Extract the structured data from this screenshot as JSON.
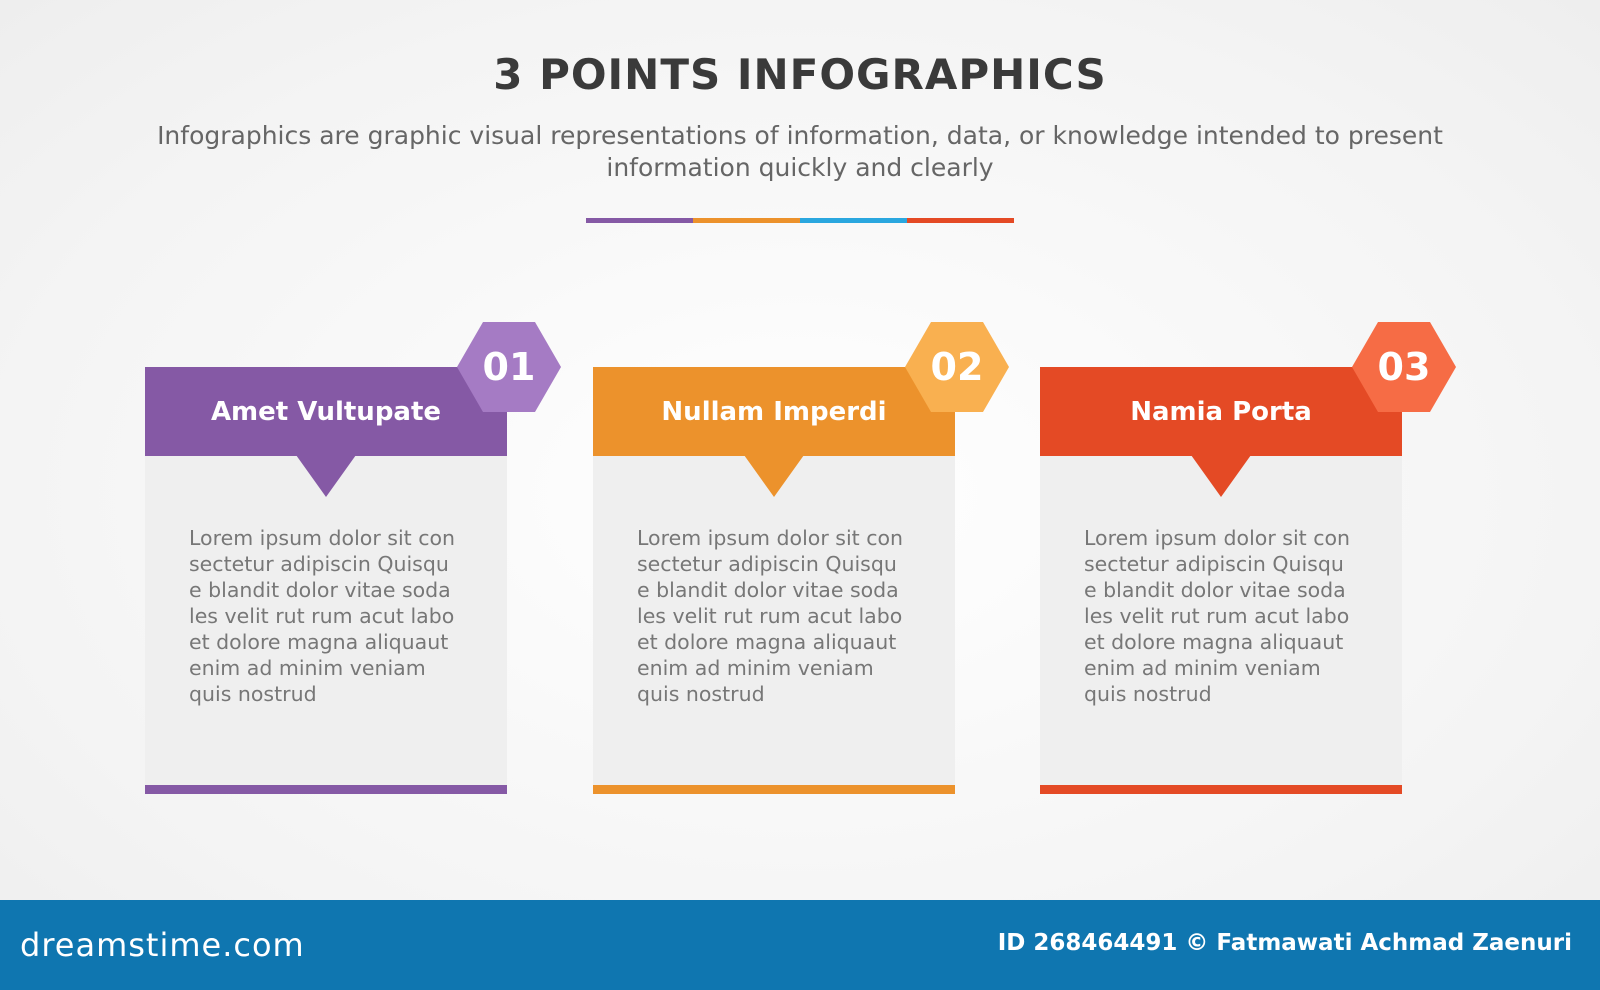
{
  "title": "3 POINTS INFOGRAPHICS",
  "subtitle": "Infographics are graphic visual representations of information, data, or knowledge intended to present information quickly and clearly",
  "colors": {
    "purple": "#8559a5",
    "orange": "#ec922c",
    "blue": "#2aa7df",
    "red": "#e44a25",
    "footer": "#0f76b0"
  },
  "cards": [
    {
      "number": "01",
      "title": "Amet Vultupate",
      "color": "#8559a5",
      "hex": "#a57bc4",
      "lines": [
        "Lorem ipsum dolor sit con",
        "sectetur adipiscin Quisqu",
        "e blandit dolor vitae soda",
        "les velit rut rum acut labo",
        "et dolore magna aliquaut",
        "enim ad minim veniam",
        "quis nostrud"
      ]
    },
    {
      "number": "02",
      "title": "Nullam Imperdi",
      "color": "#ec922c",
      "hex": "#f9b050",
      "lines": [
        "Lorem ipsum dolor sit con",
        "sectetur adipiscin Quisqu",
        "e blandit dolor vitae soda",
        "les velit rut rum acut labo",
        "et dolore magna aliquaut",
        "enim ad minim veniam",
        "quis nostrud"
      ]
    },
    {
      "number": "03",
      "title": "Namia Porta",
      "color": "#e44a25",
      "hex": "#f66c45",
      "lines": [
        "Lorem ipsum dolor sit con",
        "sectetur adipiscin Quisqu",
        "e blandit dolor vitae soda",
        "les velit rut rum acut labo",
        "et dolore magna aliquaut",
        "enim ad minim veniam",
        "quis nostrud"
      ]
    }
  ],
  "footer": {
    "logo": "dreamstime.com",
    "credit": "ID 268464491 © Fatmawati  Achmad Zaenuri"
  }
}
